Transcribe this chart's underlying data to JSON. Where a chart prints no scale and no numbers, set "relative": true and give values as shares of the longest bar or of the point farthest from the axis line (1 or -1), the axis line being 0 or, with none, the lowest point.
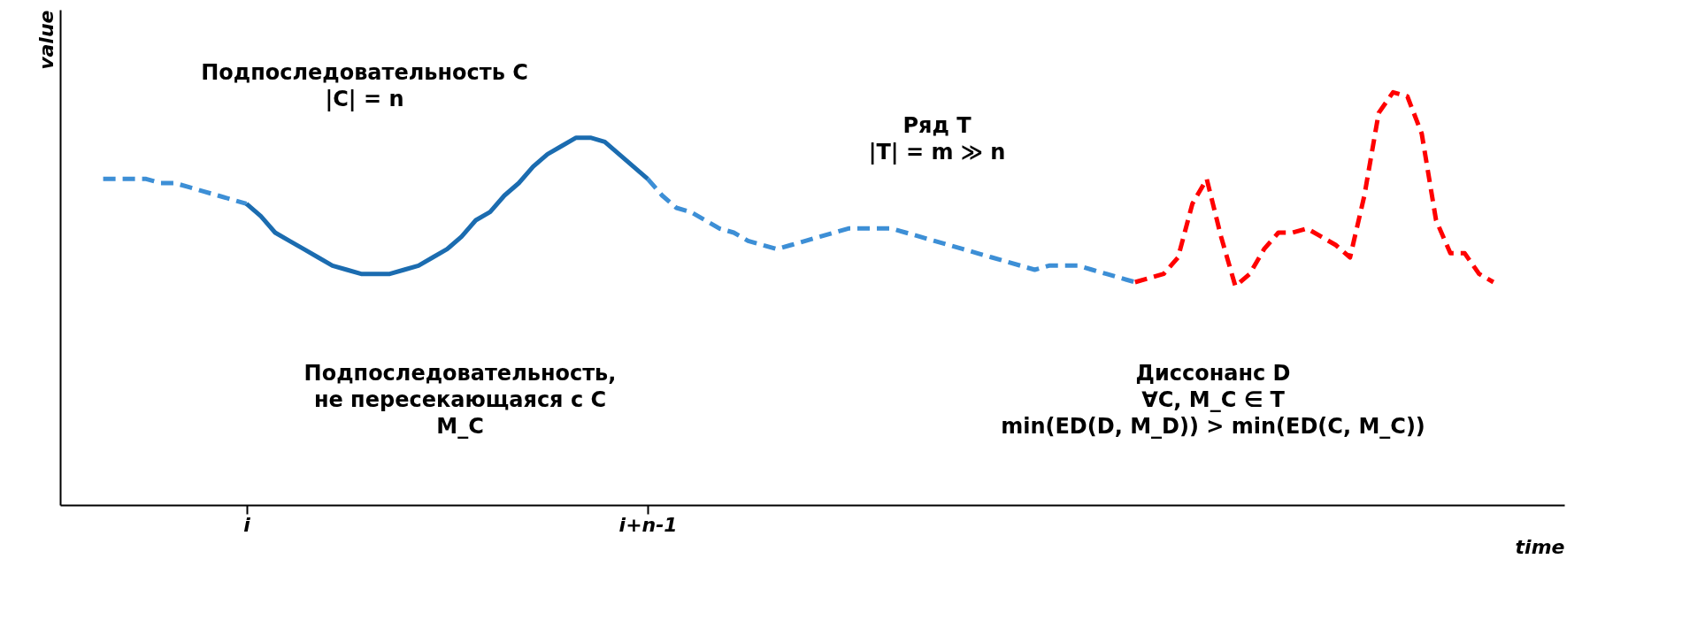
{
  "chart_data": {
    "type": "line",
    "relative": true,
    "xlabel": "time",
    "ylabel": "value",
    "categories": [
      null,
      null,
      null,
      null,
      null,
      null,
      null,
      null,
      null,
      null,
      null,
      null,
      "i",
      null,
      null,
      null,
      null,
      null,
      null,
      null,
      null,
      null,
      null,
      null,
      null,
      null,
      null,
      null,
      null,
      null,
      null,
      null,
      null,
      null,
      null,
      null,
      null,
      null,
      null,
      null,
      "i+n-1",
      null,
      null,
      null,
      null,
      null,
      null,
      null,
      null,
      null,
      null,
      null,
      null,
      null,
      null,
      null,
      null,
      null,
      null,
      null,
      null,
      null,
      null,
      null,
      null,
      null,
      null,
      null,
      null,
      null,
      null,
      null,
      null,
      null,
      null,
      null,
      null,
      null,
      null,
      null,
      null,
      null,
      null,
      null,
      null,
      null,
      null,
      null,
      null,
      null,
      null,
      null,
      null,
      null,
      null,
      null,
      null,
      null,
      null,
      null
    ],
    "grid": false,
    "marker": "none",
    "series": [
      {
        "color": "#3d8fd6",
        "line_style": "dashed",
        "values": [
          null,
          null,
          0.79,
          0.79,
          0.79,
          0.79,
          0.78,
          0.78,
          0.77,
          0.76,
          0.75,
          0.74,
          0.73,
          null,
          null,
          null,
          null,
          null,
          null,
          null,
          null,
          null,
          null,
          null,
          null,
          null,
          null,
          null,
          null,
          null,
          null,
          null,
          null,
          null,
          null,
          null,
          null,
          null,
          null,
          null,
          null,
          null,
          null,
          null,
          null,
          null,
          null,
          null,
          null,
          null,
          null,
          null,
          null,
          null,
          null,
          null,
          null,
          null,
          null,
          null,
          null,
          null,
          null,
          null,
          null,
          null,
          null,
          null,
          null,
          null,
          null,
          null,
          null,
          null,
          null,
          null,
          null,
          null,
          null,
          null,
          null,
          null,
          null,
          null,
          null,
          null,
          null,
          null,
          null,
          null,
          null,
          null,
          null,
          null,
          null,
          null,
          null,
          null,
          null,
          null
        ]
      },
      {
        "color": "#1b6cb0",
        "line_style": "solid",
        "values": [
          null,
          null,
          null,
          null,
          null,
          null,
          null,
          null,
          null,
          null,
          null,
          null,
          0.73,
          0.7,
          0.66,
          0.64,
          0.62,
          0.6,
          0.58,
          0.57,
          0.56,
          0.56,
          0.56,
          0.57,
          0.58,
          0.6,
          0.62,
          0.65,
          0.69,
          0.71,
          0.75,
          0.78,
          0.82,
          0.85,
          0.87,
          0.89,
          0.89,
          0.88,
          0.85,
          0.82,
          0.79,
          null,
          null,
          null,
          null,
          null,
          null,
          null,
          null,
          null,
          null,
          null,
          null,
          null,
          null,
          null,
          null,
          null,
          null,
          null,
          null,
          null,
          null,
          null,
          null,
          null,
          null,
          null,
          null,
          null,
          null,
          null,
          null,
          null,
          null,
          null,
          null,
          null,
          null,
          null,
          null,
          null,
          null,
          null,
          null,
          null,
          null,
          null,
          null,
          null,
          null,
          null,
          null,
          null,
          null,
          null,
          null,
          null,
          null,
          null
        ]
      },
      {
        "color": "#3d8fd6",
        "line_style": "dashed",
        "values": [
          null,
          null,
          null,
          null,
          null,
          null,
          null,
          null,
          null,
          null,
          null,
          null,
          null,
          null,
          null,
          null,
          null,
          null,
          null,
          null,
          null,
          null,
          null,
          null,
          null,
          null,
          null,
          null,
          null,
          null,
          null,
          null,
          null,
          null,
          null,
          null,
          null,
          null,
          null,
          null,
          0.79,
          0.75,
          0.72,
          0.71,
          0.69,
          0.67,
          0.66,
          0.64,
          0.63,
          0.62,
          0.63,
          0.64,
          0.65,
          0.66,
          0.67,
          0.67,
          0.67,
          0.67,
          0.66,
          0.65,
          0.64,
          0.63,
          0.62,
          0.61,
          0.6,
          0.59,
          0.58,
          0.57,
          0.58,
          0.58,
          0.58,
          0.57,
          0.56,
          0.55,
          0.54,
          null,
          null,
          null,
          null,
          null,
          null,
          null,
          null,
          null,
          null,
          null,
          null,
          null,
          null,
          null,
          null,
          null,
          null,
          null,
          null,
          null,
          null,
          null,
          null,
          null
        ]
      },
      {
        "color": "#ff0000",
        "line_style": "dashed",
        "values": [
          null,
          null,
          null,
          null,
          null,
          null,
          null,
          null,
          null,
          null,
          null,
          null,
          null,
          null,
          null,
          null,
          null,
          null,
          null,
          null,
          null,
          null,
          null,
          null,
          null,
          null,
          null,
          null,
          null,
          null,
          null,
          null,
          null,
          null,
          null,
          null,
          null,
          null,
          null,
          null,
          null,
          null,
          null,
          null,
          null,
          null,
          null,
          null,
          null,
          null,
          null,
          null,
          null,
          null,
          null,
          null,
          null,
          null,
          null,
          null,
          null,
          null,
          null,
          null,
          null,
          null,
          null,
          null,
          null,
          null,
          null,
          null,
          null,
          null,
          0.54,
          0.55,
          0.56,
          0.6,
          0.73,
          0.79,
          0.65,
          0.53,
          0.56,
          0.62,
          0.66,
          0.66,
          0.67,
          0.65,
          0.63,
          0.6,
          0.75,
          0.95,
          1.0,
          0.99,
          0.9,
          0.69,
          0.61,
          0.61,
          0.56,
          0.54
        ]
      }
    ],
    "annotations": [
      "Подпоследовательность C\n|C| = n",
      "Ряд T\n|T| = m ≫ n",
      "Подпоследовательность,\nне пересекающаяся с C\nM_C",
      "Диссонанс D\n∀C, M_C ∈ T\nmin(ED(D, M_D)) > min(ED(C, M_C))"
    ]
  }
}
